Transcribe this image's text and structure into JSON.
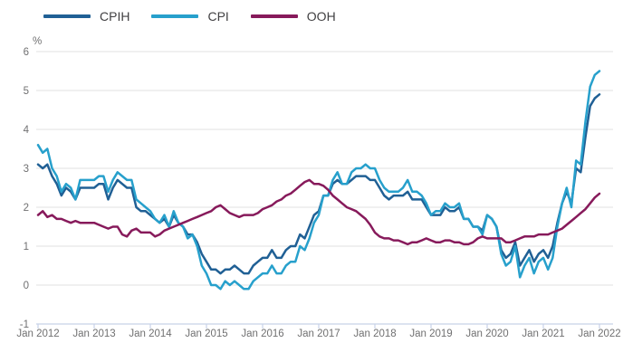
{
  "chart_data": {
    "type": "line",
    "y_unit": "%",
    "ylim": [
      -1,
      6
    ],
    "y_ticks": [
      6,
      5,
      4,
      3,
      2,
      1,
      0,
      -1
    ],
    "grid": true,
    "legend_position": "top-left",
    "x_tick_labels": [
      "Jan 2012",
      "Jan 2013",
      "Jan 2014",
      "Jan 2015",
      "Jan 2016",
      "Jan 2017",
      "Jan 2018",
      "Jan 2019",
      "Jan 2020",
      "Jan 2021",
      "Jan 2022"
    ],
    "x_start": "Jan 2012",
    "x_end": "Jan 2022",
    "x_frequency": "monthly",
    "series": [
      {
        "name": "CPIH",
        "color": "#206095",
        "values": [
          3.1,
          3.0,
          3.1,
          2.8,
          2.6,
          2.3,
          2.5,
          2.4,
          2.2,
          2.5,
          2.5,
          2.5,
          2.5,
          2.6,
          2.6,
          2.2,
          2.5,
          2.7,
          2.6,
          2.5,
          2.5,
          2.0,
          1.9,
          1.9,
          1.8,
          1.7,
          1.6,
          1.7,
          1.5,
          1.8,
          1.6,
          1.5,
          1.3,
          1.3,
          1.1,
          0.8,
          0.6,
          0.4,
          0.4,
          0.3,
          0.4,
          0.4,
          0.5,
          0.4,
          0.3,
          0.3,
          0.5,
          0.6,
          0.7,
          0.7,
          0.9,
          0.7,
          0.7,
          0.9,
          1.0,
          1.0,
          1.3,
          1.2,
          1.5,
          1.8,
          1.9,
          2.3,
          2.3,
          2.6,
          2.7,
          2.6,
          2.6,
          2.7,
          2.8,
          2.8,
          2.8,
          2.7,
          2.7,
          2.5,
          2.3,
          2.2,
          2.3,
          2.3,
          2.3,
          2.4,
          2.2,
          2.2,
          2.2,
          2.0,
          1.8,
          1.8,
          1.8,
          2.0,
          1.9,
          1.9,
          2.0,
          1.7,
          1.7,
          1.5,
          1.5,
          1.4,
          1.8,
          1.7,
          1.5,
          0.9,
          0.7,
          0.8,
          1.1,
          0.5,
          0.7,
          0.9,
          0.6,
          0.8,
          0.9,
          0.7,
          1.0,
          1.6,
          2.1,
          2.4,
          2.1,
          3.0,
          2.9,
          3.8,
          4.6,
          4.8,
          4.9
        ]
      },
      {
        "name": "CPI",
        "color": "#27a0cc",
        "values": [
          3.6,
          3.4,
          3.5,
          3.0,
          2.8,
          2.4,
          2.6,
          2.5,
          2.2,
          2.7,
          2.7,
          2.7,
          2.7,
          2.8,
          2.8,
          2.4,
          2.7,
          2.9,
          2.8,
          2.7,
          2.7,
          2.2,
          2.1,
          2.0,
          1.9,
          1.7,
          1.6,
          1.8,
          1.5,
          1.9,
          1.6,
          1.5,
          1.2,
          1.3,
          1.0,
          0.5,
          0.3,
          0.0,
          0.0,
          -0.1,
          0.1,
          0.0,
          0.1,
          0.0,
          -0.1,
          -0.1,
          0.1,
          0.2,
          0.3,
          0.3,
          0.5,
          0.3,
          0.3,
          0.5,
          0.6,
          0.6,
          1.0,
          0.9,
          1.2,
          1.6,
          1.8,
          2.3,
          2.3,
          2.7,
          2.9,
          2.6,
          2.6,
          2.9,
          3.0,
          3.0,
          3.1,
          3.0,
          3.0,
          2.7,
          2.5,
          2.4,
          2.4,
          2.4,
          2.5,
          2.7,
          2.4,
          2.4,
          2.3,
          2.1,
          1.8,
          1.9,
          1.9,
          2.1,
          2.0,
          2.0,
          2.1,
          1.7,
          1.7,
          1.5,
          1.5,
          1.3,
          1.8,
          1.7,
          1.5,
          0.8,
          0.5,
          0.6,
          1.0,
          0.2,
          0.5,
          0.7,
          0.3,
          0.6,
          0.7,
          0.4,
          0.7,
          1.5,
          2.1,
          2.5,
          2.0,
          3.2,
          3.1,
          4.2,
          5.1,
          5.4,
          5.5
        ]
      },
      {
        "name": "OOH",
        "color": "#871a5b",
        "values": [
          1.8,
          1.9,
          1.75,
          1.8,
          1.7,
          1.7,
          1.65,
          1.6,
          1.65,
          1.6,
          1.6,
          1.6,
          1.6,
          1.55,
          1.5,
          1.45,
          1.5,
          1.5,
          1.3,
          1.25,
          1.4,
          1.45,
          1.35,
          1.35,
          1.35,
          1.25,
          1.3,
          1.4,
          1.45,
          1.5,
          1.55,
          1.6,
          1.65,
          1.7,
          1.75,
          1.8,
          1.85,
          1.9,
          2.0,
          2.05,
          1.95,
          1.85,
          1.8,
          1.75,
          1.8,
          1.8,
          1.8,
          1.85,
          1.95,
          2.0,
          2.05,
          2.15,
          2.2,
          2.3,
          2.35,
          2.45,
          2.55,
          2.65,
          2.7,
          2.6,
          2.6,
          2.55,
          2.45,
          2.3,
          2.2,
          2.1,
          2.0,
          1.95,
          1.9,
          1.8,
          1.7,
          1.55,
          1.35,
          1.25,
          1.2,
          1.2,
          1.15,
          1.15,
          1.1,
          1.05,
          1.1,
          1.1,
          1.15,
          1.2,
          1.15,
          1.1,
          1.1,
          1.15,
          1.15,
          1.1,
          1.1,
          1.05,
          1.05,
          1.1,
          1.2,
          1.25,
          1.2,
          1.2,
          1.2,
          1.2,
          1.1,
          1.1,
          1.15,
          1.2,
          1.25,
          1.25,
          1.25,
          1.3,
          1.3,
          1.3,
          1.35,
          1.4,
          1.45,
          1.55,
          1.65,
          1.75,
          1.85,
          1.95,
          2.1,
          2.25,
          2.35
        ]
      }
    ]
  },
  "colors": {
    "background": "#ffffff",
    "gridline": "#e2e2e2",
    "axis_line": "#c8d2e8",
    "tick_text": "#707071",
    "legend_text": "#414042"
  }
}
